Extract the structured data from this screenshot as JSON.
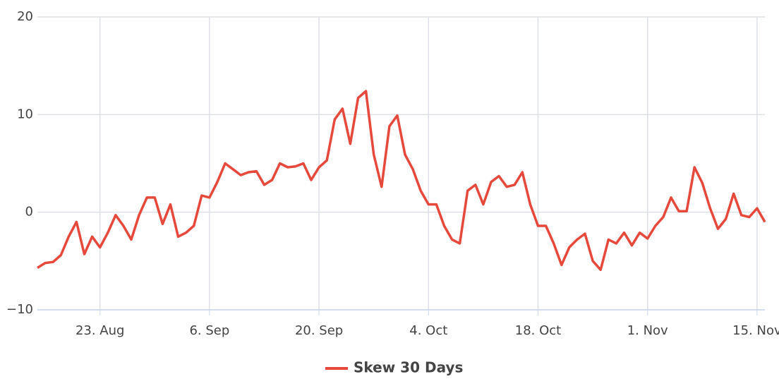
{
  "chart_data": {
    "type": "line",
    "x": [
      0,
      1,
      2,
      3,
      4,
      5,
      6,
      7,
      8,
      9,
      10,
      11,
      12,
      13,
      14,
      15,
      16,
      17,
      18,
      19,
      20,
      21,
      22,
      23,
      24,
      25,
      26,
      27,
      28,
      29,
      30,
      31,
      32,
      33,
      34,
      35,
      36,
      37,
      38,
      39,
      40,
      41,
      42,
      43,
      44,
      45,
      46,
      47,
      48,
      49,
      50,
      51,
      52,
      53,
      54,
      55,
      56,
      57,
      58,
      59,
      60,
      61,
      62,
      63,
      64,
      65,
      66,
      67,
      68,
      69,
      70,
      71,
      72,
      73,
      74,
      75,
      76,
      77,
      78,
      79,
      80,
      81,
      82,
      83,
      84,
      85,
      86,
      87,
      88,
      89,
      90,
      91,
      92,
      93
    ],
    "series": [
      {
        "name": "Skew 30 Days",
        "color": "#e5493c",
        "values": [
          -5.7,
          -5.2,
          -5.1,
          -4.4,
          -2.5,
          -1,
          -4.3,
          -2.5,
          -3.6,
          -2.1,
          -0.3,
          -1.4,
          -2.8,
          -0.3,
          1.5,
          1.5,
          -1.2,
          0.8,
          -2.5,
          -2.1,
          -1.4,
          1.7,
          1.5,
          3.1,
          5.0,
          4.4,
          3.8,
          4.1,
          4.2,
          2.8,
          3.3,
          5.0,
          4.6,
          4.7,
          5.0,
          3.3,
          4.6,
          5.3,
          9.5,
          10.6,
          7.0,
          11.7,
          12.4,
          5.9,
          2.6,
          8.8,
          9.9,
          5.9,
          4.4,
          2.2,
          0.8,
          0.8,
          -1.4,
          -2.8,
          -3.2,
          2.2,
          2.8,
          0.8,
          3.1,
          3.7,
          2.6,
          2.8,
          4.1,
          0.8,
          -1.4,
          -1.4,
          -3.2,
          -5.4,
          -3.6,
          -2.8,
          -2.2,
          -5.0,
          -5.9,
          -2.8,
          -3.2,
          -2.1,
          -3.4,
          -2.1,
          -2.7,
          -1.4,
          -0.5,
          1.5,
          0.1,
          0.1,
          4.6,
          3.0,
          0.4,
          -1.7,
          -0.7,
          1.9,
          -0.3,
          -0.5,
          0.4,
          -1.0
        ]
      }
    ],
    "xlim": [
      0,
      93
    ],
    "xticks": [
      {
        "value": 8,
        "label": "23. Aug"
      },
      {
        "value": 22,
        "label": "6. Sep"
      },
      {
        "value": 36,
        "label": "20. Sep"
      },
      {
        "value": 50,
        "label": "4. Oct"
      },
      {
        "value": 64,
        "label": "18. Oct"
      },
      {
        "value": 78,
        "label": "1. Nov"
      },
      {
        "value": 92,
        "label": "15. Nov"
      }
    ],
    "ylim": [
      -10,
      20
    ],
    "yticks": [
      {
        "value": -10,
        "label": "−10"
      },
      0,
      10,
      20
    ],
    "grid": true,
    "legend": "bottom"
  }
}
